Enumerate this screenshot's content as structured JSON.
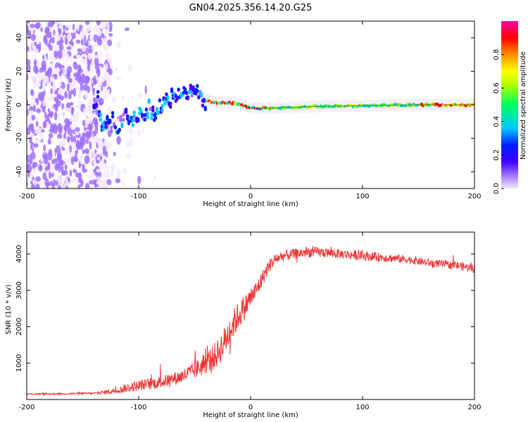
{
  "title": "GN04.2025.356.14.20.G25",
  "chart_data": [
    {
      "type": "heatmap",
      "xlabel": "Height of straight line (km)",
      "ylabel": "Frequency (Hz)",
      "xlim": [
        -200,
        200
      ],
      "ylim": [
        -50,
        50
      ],
      "xticks": [
        -200,
        -100,
        0,
        100,
        200
      ],
      "xtick_labels": [
        "-200",
        "-100",
        "0",
        "100",
        "200"
      ],
      "yticks": [
        -40,
        -20,
        0,
        20,
        40
      ],
      "ytick_labels": [
        "-40",
        "-20",
        "0",
        "20",
        "40"
      ],
      "colorbar": {
        "label": "Normalized spectral amplitude",
        "range": [
          0,
          1
        ],
        "ticks": [
          0,
          0.2,
          0.4,
          0.6,
          0.8
        ],
        "tick_labels": [
          "0.0",
          "0.2",
          "0.4",
          "0.6",
          "0.8"
        ],
        "colors": [
          "#f4eaff",
          "#a070ff",
          "#4000ff",
          "#0020ff",
          "#00c8ff",
          "#00ff60",
          "#b0ff00",
          "#ffff00",
          "#ff9000",
          "#ff0000",
          "#ff00a0"
        ]
      },
      "ridge": [
        {
          "x": -135,
          "freq": -10
        },
        {
          "x": -120,
          "freq": -12
        },
        {
          "x": -105,
          "freq": -5
        },
        {
          "x": -90,
          "freq": -3
        },
        {
          "x": -75,
          "freq": 2
        },
        {
          "x": -60,
          "freq": 6
        },
        {
          "x": -48,
          "freq": 7
        },
        {
          "x": -40,
          "freq": 3
        },
        {
          "x": -30,
          "freq": 1
        },
        {
          "x": -15,
          "freq": 1
        },
        {
          "x": 0,
          "freq": -2
        },
        {
          "x": 20,
          "freq": -2
        },
        {
          "x": 60,
          "freq": -1
        },
        {
          "x": 100,
          "freq": -0.5
        },
        {
          "x": 150,
          "freq": 0
        },
        {
          "x": 200,
          "freq": 0
        }
      ]
    },
    {
      "type": "line",
      "xlabel": "Height of straight line (km)",
      "ylabel": "SNR (10 * v/v)",
      "xlim": [
        -200,
        200
      ],
      "ylim": [
        0,
        4600
      ],
      "xticks": [
        -200,
        -100,
        0,
        100,
        200
      ],
      "xtick_labels": [
        "-200",
        "-100",
        "0",
        "100",
        "200"
      ],
      "yticks": [
        1000,
        2000,
        3000,
        4000
      ],
      "ytick_labels": [
        "1000",
        "2000",
        "3000",
        "4000"
      ],
      "color": "#ee3333",
      "series": [
        {
          "name": "SNR",
          "x": [
            -200,
            -180,
            -160,
            -140,
            -130,
            -120,
            -110,
            -100,
            -90,
            -80,
            -70,
            -60,
            -50,
            -40,
            -30,
            -25,
            -20,
            -15,
            -10,
            -5,
            0,
            5,
            10,
            15,
            20,
            25,
            30,
            40,
            50,
            60,
            80,
            100,
            120,
            140,
            160,
            180,
            200
          ],
          "y": [
            150,
            150,
            160,
            170,
            200,
            250,
            320,
            380,
            430,
            480,
            560,
            650,
            800,
            1000,
            1250,
            1500,
            1800,
            2100,
            2350,
            2550,
            2800,
            3000,
            3300,
            3600,
            3800,
            3900,
            3950,
            4000,
            4050,
            4050,
            4000,
            3950,
            3900,
            3850,
            3750,
            3700,
            3600
          ],
          "noise": [
            20,
            20,
            25,
            30,
            60,
            90,
            120,
            150,
            160,
            170,
            180,
            200,
            240,
            300,
            380,
            420,
            420,
            400,
            380,
            340,
            300,
            260,
            230,
            200,
            180,
            160,
            150,
            150,
            150,
            140,
            130,
            130,
            120,
            110,
            110,
            110,
            120
          ]
        }
      ]
    }
  ]
}
